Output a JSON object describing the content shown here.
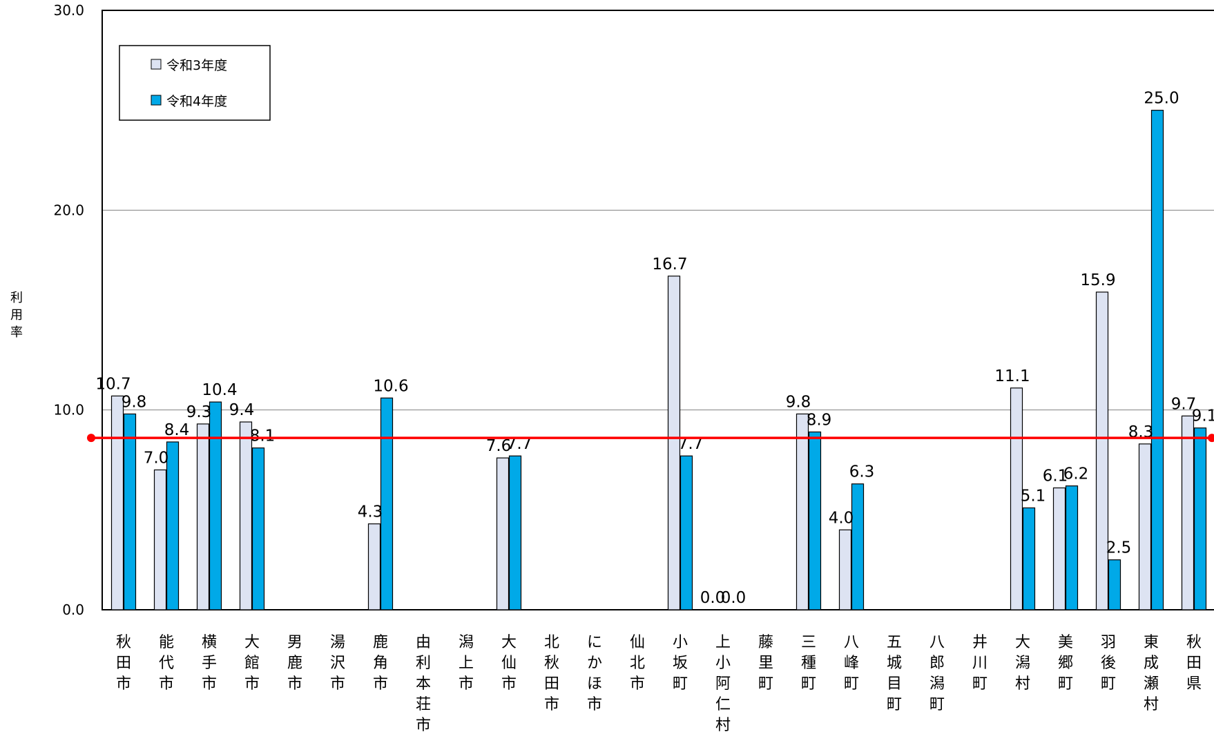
{
  "chart_data": {
    "type": "bar",
    "ylabel": "利用率",
    "ylim": [
      0,
      30
    ],
    "yticks": [
      "0.0",
      "10.0",
      "20.0",
      "30.0"
    ],
    "grid": true,
    "legend_position": "top-left",
    "categories": [
      "秋田市",
      "能代市",
      "横手市",
      "大館市",
      "男鹿市",
      "湯沢市",
      "鹿角市",
      "由利本荘市",
      "潟上市",
      "大仙市",
      "北秋田市",
      "にかほ市",
      "仙北市",
      "小坂町",
      "上小阿仁村",
      "藤里町",
      "三種町",
      "八峰町",
      "五城目町",
      "八郎潟町",
      "井川町",
      "大潟村",
      "美郷町",
      "羽後町",
      "東成瀬村",
      "秋田県"
    ],
    "series": [
      {
        "name": "令和3年度",
        "color": "#dde3f2",
        "values": [
          10.7,
          7.0,
          9.3,
          9.4,
          null,
          null,
          4.3,
          null,
          null,
          7.6,
          null,
          null,
          null,
          16.7,
          0.0,
          null,
          9.8,
          4.0,
          null,
          null,
          null,
          11.1,
          6.1,
          15.9,
          8.3,
          9.7
        ],
        "labels": [
          "10.7",
          "7.0",
          "9.3",
          "9.4",
          "",
          "",
          "4.3",
          "",
          "",
          "7.6",
          "",
          "",
          "",
          "16.7",
          "0.0",
          "",
          "9.8",
          "4.0",
          "",
          "",
          "",
          "11.1",
          "6.1",
          "15.9",
          "8.3",
          "9.7"
        ]
      },
      {
        "name": "令和4年度",
        "color": "#00a9e8",
        "values": [
          9.8,
          8.4,
          10.4,
          8.1,
          null,
          null,
          10.6,
          null,
          null,
          7.7,
          null,
          null,
          null,
          7.7,
          0.0,
          null,
          8.9,
          6.3,
          null,
          null,
          null,
          5.1,
          6.2,
          2.5,
          25.0,
          9.1
        ],
        "labels": [
          "9.8",
          "8.4",
          "10.4",
          "8.1",
          "",
          "",
          "10.6",
          "",
          "",
          "7.7",
          "",
          "",
          "",
          "7.7",
          "0.0",
          "",
          "8.9",
          "6.3",
          "",
          "",
          "",
          "5.1",
          "6.2",
          "2.5",
          "25.0",
          "9.1"
        ]
      }
    ],
    "reference_line": {
      "value": 8.6,
      "color": "#ff0000"
    }
  }
}
